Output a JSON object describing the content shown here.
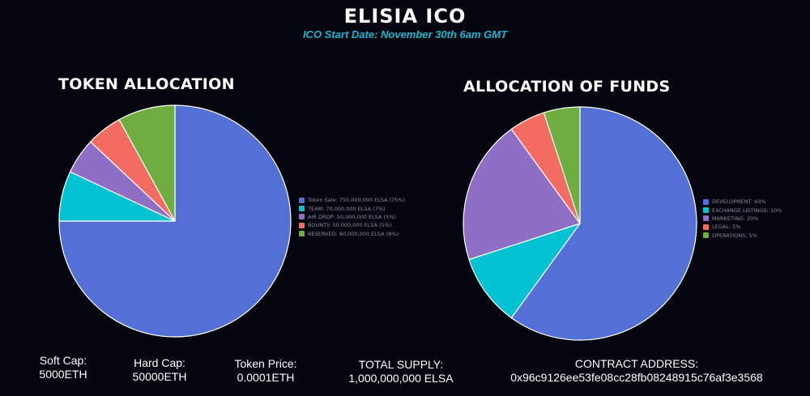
{
  "header": {
    "title": "ELISIA ICO",
    "subtitle": "ICO Start Date: November 30th 6am GMT"
  },
  "chart_data": [
    {
      "type": "pie",
      "title": "TOKEN ALLOCATION",
      "legend_position": "right",
      "slices": [
        {
          "label": "Token Sale: 750,000,000 ELSA (75%)",
          "value": 75,
          "color": "#5470d6"
        },
        {
          "label": "TEAM: 70,000,000 ELSA (7%)",
          "value": 7,
          "color": "#00c2d2"
        },
        {
          "label": "AIR DROP: 50,000,000 ELSA (5%)",
          "value": 5,
          "color": "#8f6fc6"
        },
        {
          "label": "BOUNTY: 50,000,000 ELSA (5%)",
          "value": 5,
          "color": "#f46b62"
        },
        {
          "label": "RESERVED: 80,000,000 ELSA (8%)",
          "value": 8,
          "color": "#6ead3f"
        }
      ]
    },
    {
      "type": "pie",
      "title": "ALLOCATION OF FUNDS",
      "legend_position": "right",
      "slices": [
        {
          "label": "DEVELOPMENT: 60%",
          "value": 60,
          "color": "#5470d6"
        },
        {
          "label": "EXCHANGE LISTINGS: 10%",
          "value": 10,
          "color": "#00c2d2"
        },
        {
          "label": "MARKETING: 20%",
          "value": 20,
          "color": "#8f6fc6"
        },
        {
          "label": "LEGAL: 5%",
          "value": 5,
          "color": "#f46b62"
        },
        {
          "label": "OPERATIONS: 5%",
          "value": 5,
          "color": "#6ead3f"
        }
      ]
    }
  ],
  "stats": {
    "soft_cap_label": "Soft Cap:",
    "soft_cap_value": "5000ETH",
    "hard_cap_label": "Hard Cap:",
    "hard_cap_value": "50000ETH",
    "token_price_label": "Token Price:",
    "token_price_value": "0.0001ETH",
    "total_supply_label": "TOTAL SUPPLY:",
    "total_supply_value": "1,000,000,000 ELSA",
    "contract_label": "CONTRACT ADDRESS:",
    "contract_value": "0x96c9126ee53fe08cc28fb08248915c76af3e3568"
  }
}
